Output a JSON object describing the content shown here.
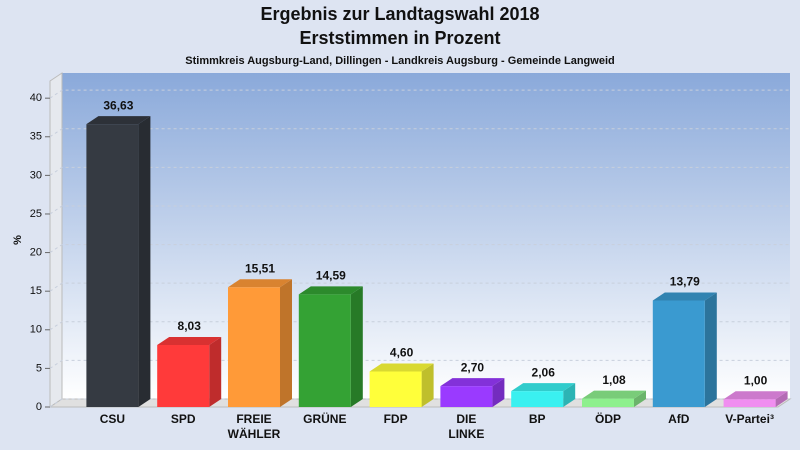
{
  "chart_data": {
    "type": "bar3d",
    "title": "Ergebnis zur Landtagswahl 2018",
    "subtitle": "Erststimmen in Prozent",
    "caption": "Stimmkreis Augsburg-Land, Dillingen - Landkreis Augsburg - Gemeinde Langweid",
    "y_label": "%",
    "categories": [
      "CSU",
      "SPD",
      "FREIE WÄHLER",
      "GRÜNE",
      "FDP",
      "DIE LINKE",
      "BP",
      "ÖDP",
      "AfD",
      "V-Partei³"
    ],
    "values": [
      36.63,
      8.03,
      15.51,
      14.59,
      4.6,
      2.7,
      2.06,
      1.08,
      13.79,
      1.0
    ],
    "value_labels": [
      "36,63",
      "8,03",
      "15,51",
      "14,59",
      "4,60",
      "2,70",
      "2,06",
      "1,08",
      "13,79",
      "1,00"
    ],
    "colors": [
      "#353a42",
      "#ff3a3a",
      "#ff9a38",
      "#34a234",
      "#ffff3a",
      "#9a3aff",
      "#3af0f0",
      "#8ef08e",
      "#3a9ad0",
      "#f08ef0"
    ],
    "ylim": [
      0,
      43
    ],
    "yticks": [
      0,
      5,
      10,
      15,
      20,
      25,
      30,
      35,
      40
    ],
    "grid": true
  }
}
